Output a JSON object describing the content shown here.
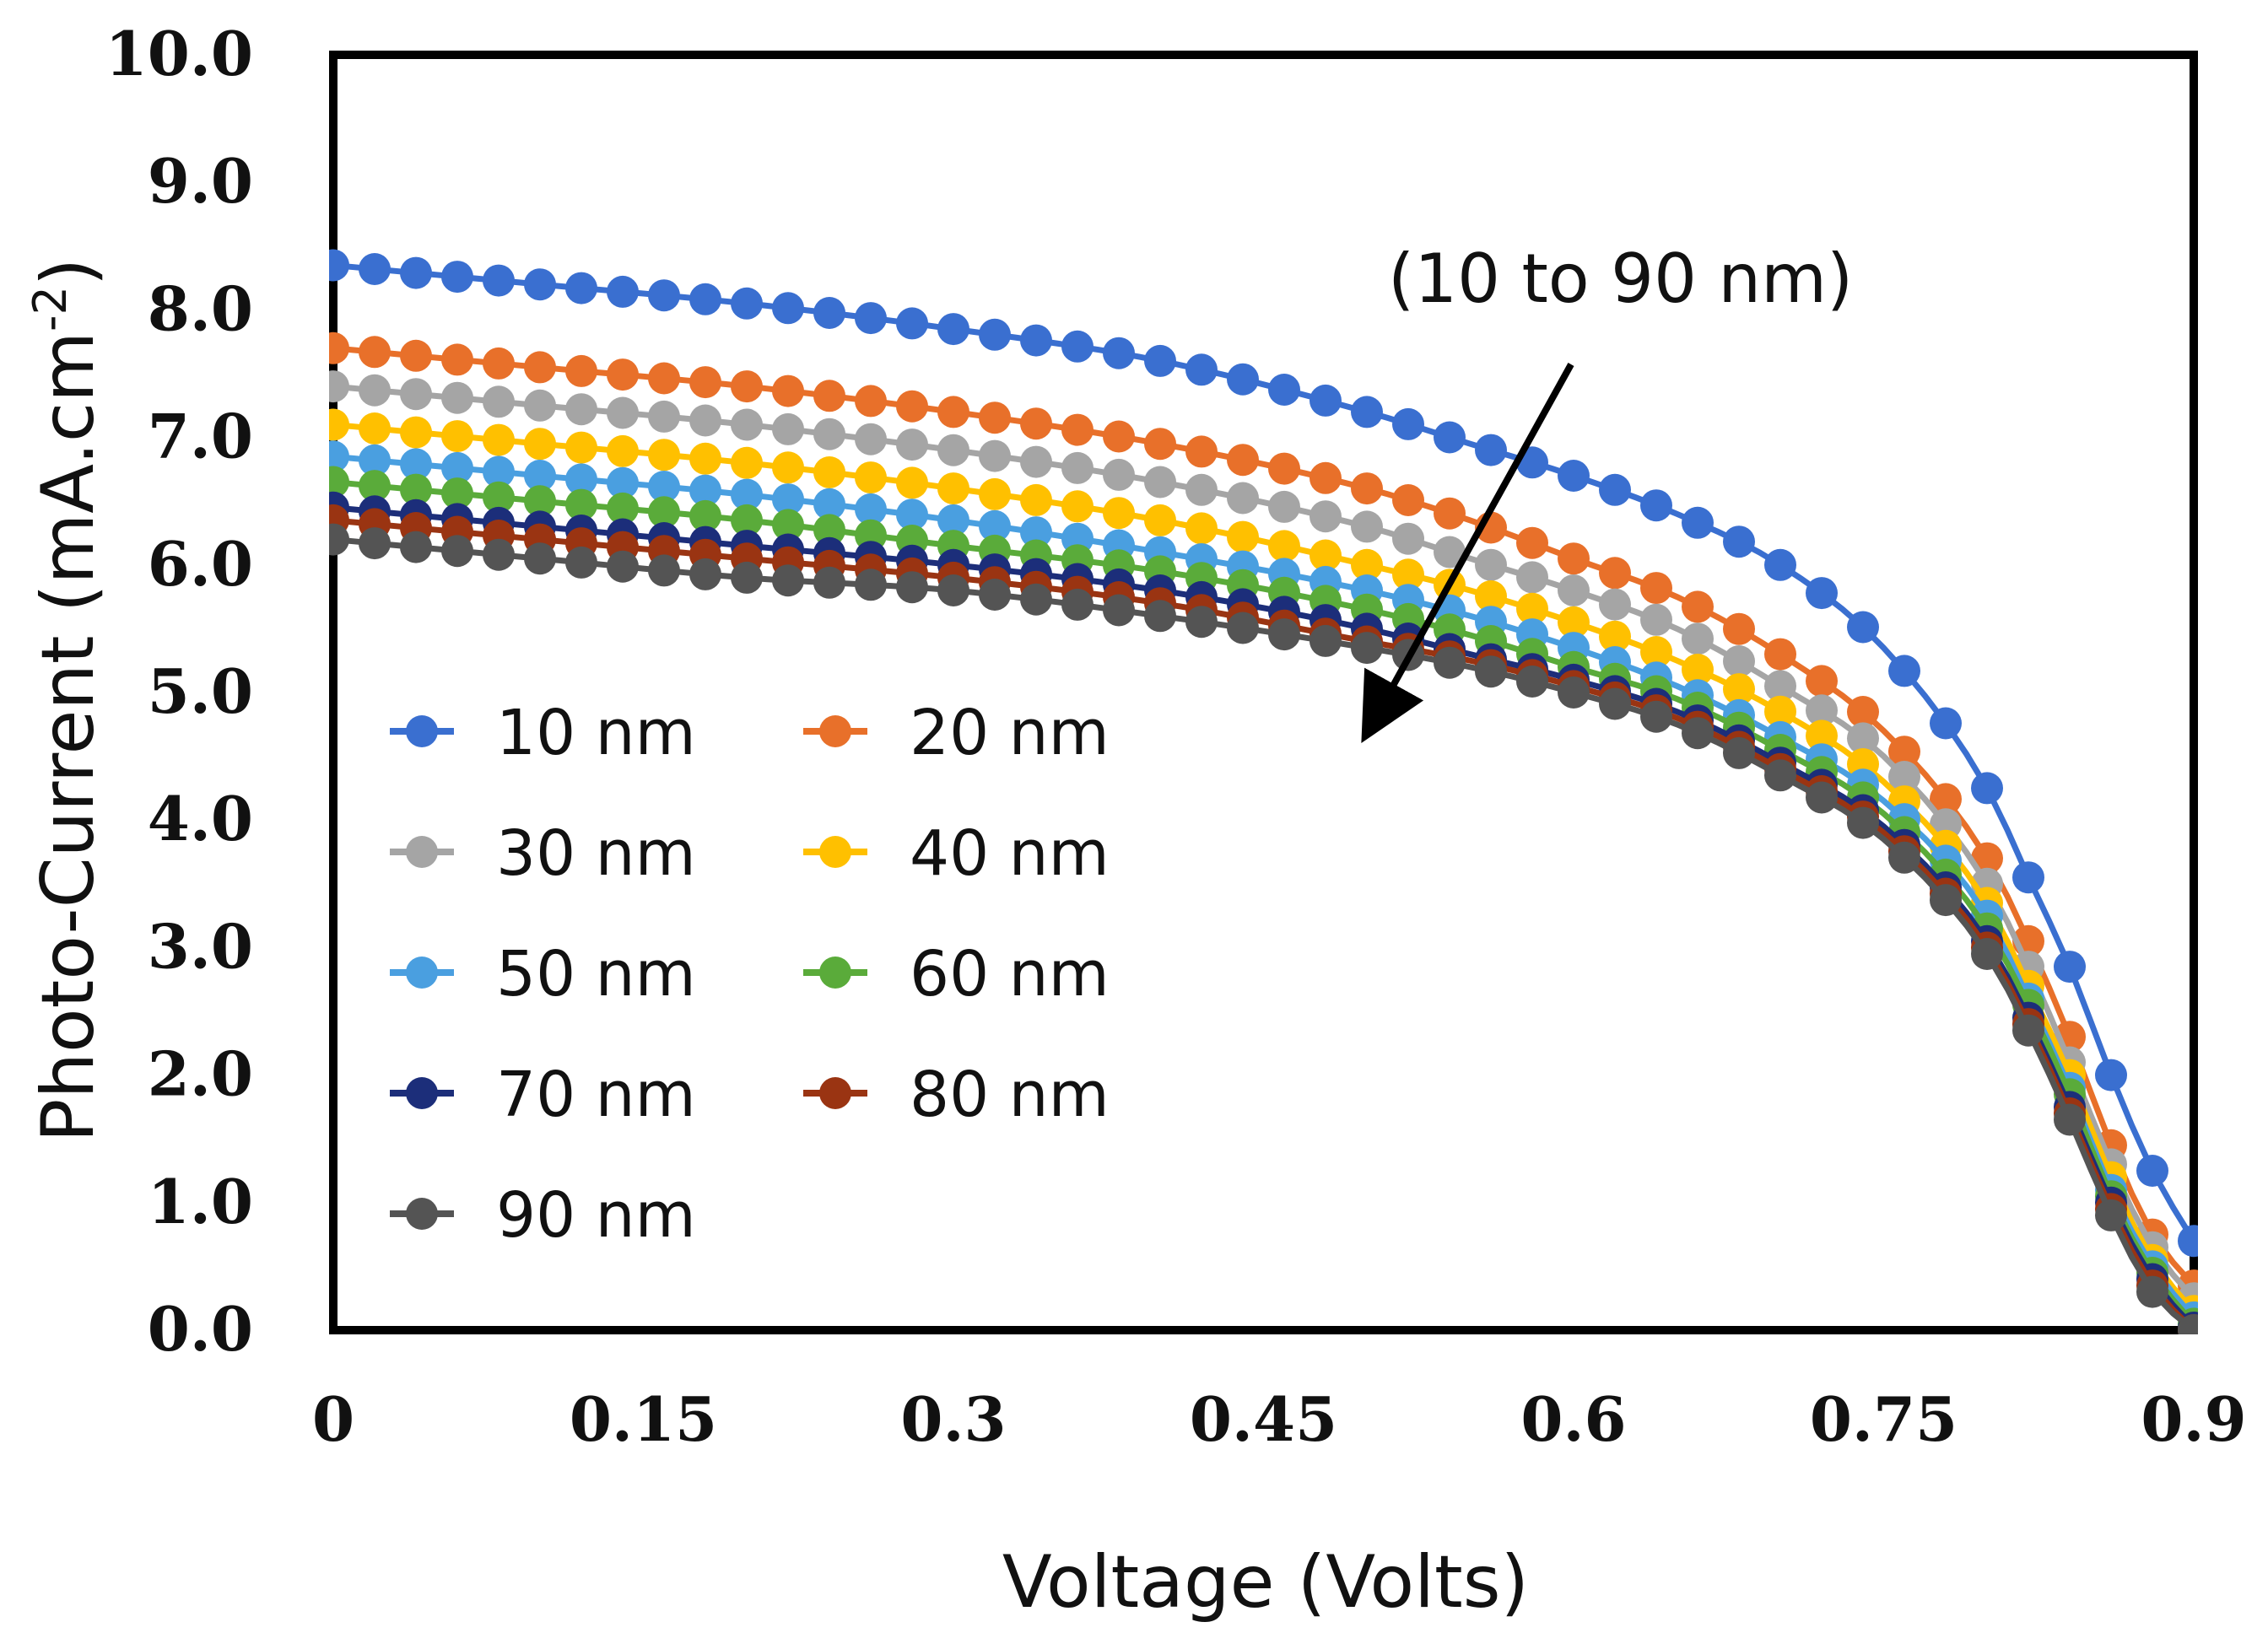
{
  "chart_data": {
    "type": "line",
    "title": "",
    "xlabel": "Voltage (Volts)",
    "ylabel": "Photo-Current (mA.cm",
    "ylabel_sup": "-2",
    "ylabel_end": ")",
    "xlim": [
      0,
      0.9
    ],
    "ylim": [
      0,
      10
    ],
    "x_ticks": [
      "0",
      "0.15",
      "0.3",
      "0.45",
      "0.6",
      "0.75",
      "0.9"
    ],
    "y_ticks": [
      "0.0",
      "1.0",
      "2.0",
      "3.0",
      "4.0",
      "5.0",
      "6.0",
      "7.0",
      "8.0",
      "9.0",
      "10.0"
    ],
    "grid": false,
    "legend_position": "lower-left",
    "annotation": "(10 to 90 nm)",
    "x": [
      0,
      0.1,
      0.2,
      0.3,
      0.4,
      0.5,
      0.55,
      0.6,
      0.65,
      0.7,
      0.75,
      0.8,
      0.82,
      0.84,
      0.86,
      0.88,
      0.9
    ],
    "series": [
      {
        "name": "10 nm",
        "color": "#3a6fd0",
        "values": [
          8.35,
          8.2,
          8.05,
          7.85,
          7.6,
          7.2,
          6.95,
          6.7,
          6.4,
          6.0,
          5.35,
          4.25,
          3.55,
          2.85,
          2.0,
          1.25,
          0.7
        ]
      },
      {
        "name": "20 nm",
        "color": "#e8702a",
        "values": [
          7.7,
          7.55,
          7.4,
          7.2,
          6.95,
          6.6,
          6.35,
          6.05,
          5.75,
          5.3,
          4.7,
          3.7,
          3.05,
          2.3,
          1.45,
          0.75,
          0.35
        ]
      },
      {
        "name": "30 nm",
        "color": "#a5a5a5",
        "values": [
          7.4,
          7.25,
          7.1,
          6.9,
          6.65,
          6.3,
          6.05,
          5.8,
          5.5,
          5.05,
          4.5,
          3.5,
          2.85,
          2.1,
          1.3,
          0.65,
          0.25
        ]
      },
      {
        "name": "40 nm",
        "color": "#ffc000",
        "values": [
          7.1,
          6.95,
          6.8,
          6.6,
          6.35,
          6.0,
          5.8,
          5.55,
          5.25,
          4.85,
          4.3,
          3.35,
          2.7,
          2.0,
          1.2,
          0.55,
          0.15
        ]
      },
      {
        "name": "50 nm",
        "color": "#4a9fe0",
        "values": [
          6.85,
          6.7,
          6.55,
          6.35,
          6.1,
          5.8,
          5.6,
          5.35,
          5.05,
          4.65,
          4.15,
          3.25,
          2.6,
          1.9,
          1.1,
          0.5,
          0.1
        ]
      },
      {
        "name": "60 nm",
        "color": "#5aab3a",
        "values": [
          6.65,
          6.5,
          6.35,
          6.15,
          5.95,
          5.65,
          5.45,
          5.2,
          4.95,
          4.55,
          4.05,
          3.15,
          2.55,
          1.85,
          1.05,
          0.45,
          0.05
        ]
      },
      {
        "name": "70 nm",
        "color": "#1c2e7a",
        "values": [
          6.45,
          6.3,
          6.15,
          6.0,
          5.8,
          5.5,
          5.3,
          5.1,
          4.85,
          4.45,
          3.95,
          3.05,
          2.45,
          1.75,
          1.0,
          0.4,
          0.02
        ]
      },
      {
        "name": "80 nm",
        "color": "#9a3412",
        "values": [
          6.35,
          6.2,
          6.05,
          5.9,
          5.7,
          5.4,
          5.25,
          5.05,
          4.8,
          4.4,
          3.9,
          3.0,
          2.4,
          1.7,
          0.95,
          0.35,
          0.0
        ]
      },
      {
        "name": "90 nm",
        "color": "#545454",
        "values": [
          6.2,
          6.05,
          5.9,
          5.8,
          5.6,
          5.35,
          5.2,
          5.0,
          4.75,
          4.35,
          3.85,
          2.95,
          2.35,
          1.65,
          0.9,
          0.3,
          0.0
        ]
      }
    ]
  }
}
